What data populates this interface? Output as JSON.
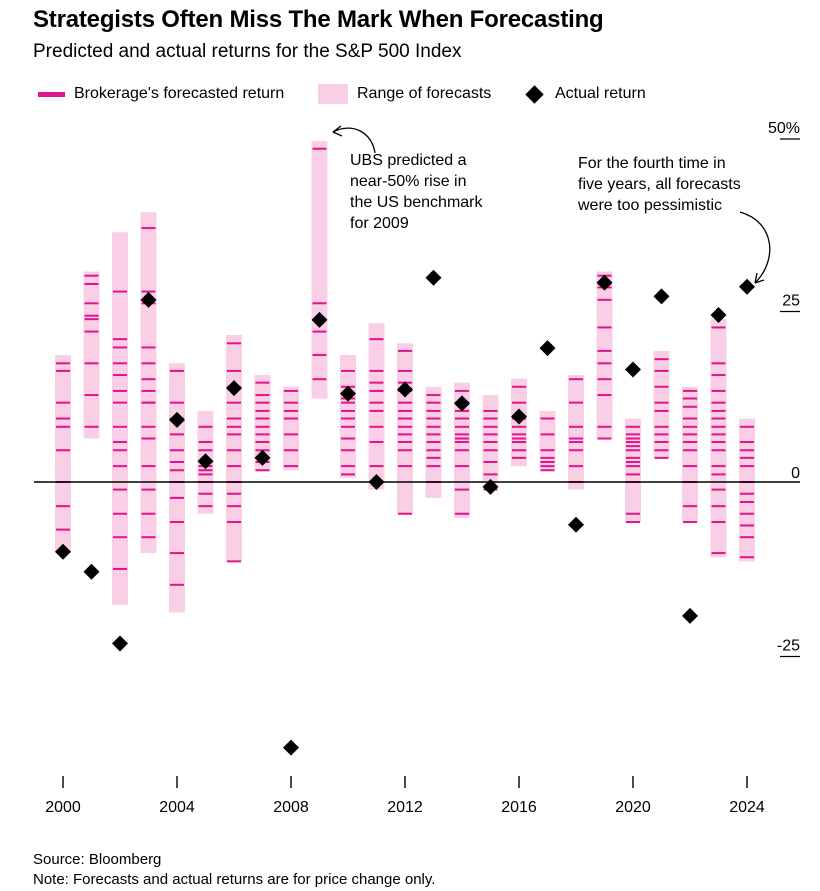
{
  "title": "Strategists Often Miss The Mark When Forecasting",
  "subtitle": "Predicted and actual returns for the S&P 500 Index",
  "legend": {
    "forecast": "Brokerage's forecasted return",
    "range": "Range of forecasts",
    "actual": "Actual return"
  },
  "colors": {
    "forecast": "#e0148c",
    "range": "#f8cfe5",
    "actual": "#000000",
    "zero_line": "#000000"
  },
  "annotations": [
    "UBS predicted a\nnear-50% rise in\nthe US benchmark\nfor 2009",
    "For the fourth time in\nfive years, all forecasts\nwere too pessimistic"
  ],
  "source": "Source: Bloomberg",
  "note": "Note: Forecasts and actual returns are for price change only.",
  "chart_data": {
    "type": "scatter",
    "title": "Strategists Often Miss The Mark When Forecasting",
    "subtitle": "Predicted and actual returns for the S&P 500 Index",
    "x_ticks": [
      "2000",
      "2004",
      "2008",
      "2012",
      "2016",
      "2020",
      "2024"
    ],
    "y_ticks": [
      "50%",
      "25",
      "0",
      "-25"
    ],
    "y_axis_side": "right",
    "ylim": [
      -43,
      52
    ],
    "xlim": [
      2000,
      2024
    ],
    "legend_placement": "top",
    "grid": false,
    "series": [
      {
        "name": "Range of forecasts",
        "type": "range",
        "x": [
          2000,
          2001,
          2002,
          2003,
          2004,
          2005,
          2006,
          2007,
          2008,
          2009,
          2010,
          2011,
          2012,
          2013,
          2014,
          2015,
          2016,
          2017,
          2018,
          2019,
          2020,
          2021,
          2022,
          2023,
          2024
        ],
        "low": [
          -10.3,
          6.3,
          -17.8,
          -10.3,
          -18.9,
          -4.6,
          -11.5,
          1.7,
          1.7,
          12.1,
          0.6,
          -1.1,
          -4.6,
          -2.3,
          -5.2,
          0,
          2.3,
          1.7,
          -1.1,
          6.3,
          -5.8,
          3.5,
          -5.8,
          -10.9,
          -11.5
        ],
        "high": [
          18.4,
          30.5,
          36.2,
          39.1,
          17.2,
          10.3,
          21.3,
          15.5,
          13.8,
          49.4,
          18.4,
          23.0,
          20.1,
          13.8,
          14.4,
          12.6,
          15.0,
          10.3,
          15.5,
          30.5,
          9.2,
          19.0,
          13.8,
          23.6,
          9.2
        ]
      },
      {
        "name": "Brokerage's forecasted return",
        "type": "ticks",
        "points": {
          "2000": [
            17.2,
            16.1,
            11.5,
            9.2,
            8.0,
            4.6,
            0,
            -3.5,
            -6.9
          ],
          "2001": [
            29.9,
            28.7,
            25.9,
            24.1,
            23.6,
            21.8,
            17.2,
            12.6,
            8.0
          ],
          "2002": [
            27.6,
            20.7,
            19.5,
            17.2,
            15.5,
            13.2,
            11.5,
            8.0,
            5.8,
            4.6,
            2.3,
            -1.1,
            -4.6,
            -8.0,
            -12.6
          ],
          "2003": [
            36.8,
            27.6,
            25.9,
            19.5,
            17.2,
            14.9,
            13.2,
            11.5,
            11.5,
            8.0,
            6.3,
            2.3,
            -1.1,
            -4.6,
            -8.0
          ],
          "2004": [
            16.1,
            11.5,
            9.2,
            6.9,
            4.6,
            2.9,
            1.7,
            0,
            -2.3,
            -5.8,
            -10.3,
            -14.9
          ],
          "2005": [
            8.0,
            5.8,
            4.6,
            2.9,
            2.3,
            1.7,
            1.1,
            0,
            -1.7,
            -3.5
          ],
          "2006": [
            20.1,
            16.1,
            13.8,
            11.5,
            9.2,
            8.0,
            6.9,
            4.6,
            2.3,
            0,
            -1.7,
            -3.5,
            -5.8,
            -11.5
          ],
          "2007": [
            14.4,
            12.6,
            11.5,
            10.3,
            9.2,
            8.0,
            6.9,
            5.8,
            4.6,
            2.9,
            1.7
          ],
          "2008": [
            13.2,
            11.5,
            10.3,
            9.2,
            6.9,
            4.6,
            2.3
          ],
          "2009": [
            48.3,
            25.9,
            21.8,
            18.4,
            14.9
          ],
          "2010": [
            16.1,
            13.8,
            12.1,
            11.5,
            10.3,
            9.2,
            8.0,
            6.3,
            4.6,
            2.3,
            1.1
          ],
          "2011": [
            20.7,
            16.1,
            14.4,
            13.2,
            11.5,
            10.3,
            8.0,
            5.8,
            2.3,
            0
          ],
          "2012": [
            19.0,
            16.1,
            14.4,
            13.2,
            11.5,
            10.3,
            9.2,
            8.0,
            6.9,
            5.8,
            4.6,
            2.3,
            -4.6
          ],
          "2013": [
            12.6,
            11.5,
            10.3,
            9.2,
            8.0,
            6.9,
            5.8,
            4.6,
            3.5,
            2.3,
            0
          ],
          "2014": [
            13.2,
            11.5,
            10.3,
            9.2,
            8.0,
            6.9,
            6.3,
            6.3,
            5.8,
            4.6,
            2.3,
            -1.1,
            -4.6
          ],
          "2015": [
            10.3,
            9.2,
            8.0,
            6.9,
            5.8,
            4.6,
            2.9,
            1.1,
            -1.1
          ],
          "2016": [
            13.8,
            11.5,
            9.2,
            8.0,
            6.9,
            6.3,
            5.8,
            4.6,
            3.5
          ],
          "2017": [
            9.2,
            6.9,
            4.6,
            3.5,
            2.9,
            2.3,
            1.7
          ],
          "2018": [
            14.9,
            11.5,
            8.0,
            6.3,
            5.8,
            4.6,
            2.3,
            0
          ],
          "2019": [
            29.9,
            28.7,
            28.2,
            26.4,
            22.4,
            19.0,
            17.2,
            14.9,
            12.6,
            8.0,
            6.3
          ],
          "2020": [
            8.0,
            6.9,
            6.3,
            5.8,
            5.2,
            4.6,
            3.5,
            2.9,
            2.3,
            1.1,
            0,
            -4.6,
            -5.8
          ],
          "2021": [
            17.8,
            16.1,
            13.8,
            11.5,
            10.3,
            8.0,
            6.9,
            5.8,
            4.6,
            3.5
          ],
          "2022": [
            13.2,
            12.1,
            10.9,
            9.2,
            8.0,
            6.9,
            5.8,
            4.6,
            2.3,
            0,
            -3.5,
            -5.8
          ],
          "2023": [
            22.4,
            17.2,
            15.5,
            13.2,
            11.5,
            10.3,
            9.2,
            8.0,
            6.9,
            5.8,
            4.6,
            2.3,
            1.1,
            -1.1,
            -3.5,
            -5.8,
            -10.3
          ],
          "2024": [
            8.0,
            5.8,
            4.6,
            3.5,
            2.3,
            0,
            -1.7,
            -2.9,
            -4.6,
            -6.3,
            -8.0,
            -10.9
          ]
        }
      },
      {
        "name": "Actual return",
        "type": "scatter",
        "x": [
          2000,
          2001,
          2002,
          2003,
          2004,
          2005,
          2006,
          2007,
          2008,
          2009,
          2010,
          2011,
          2012,
          2013,
          2014,
          2015,
          2016,
          2017,
          2018,
          2019,
          2020,
          2021,
          2022,
          2023,
          2024
        ],
        "y": [
          -10.1,
          -13.0,
          -23.4,
          26.4,
          9.0,
          3.0,
          13.6,
          3.5,
          -38.5,
          23.5,
          12.8,
          0,
          13.4,
          29.6,
          11.4,
          -0.7,
          9.5,
          19.4,
          -6.2,
          28.9,
          16.3,
          26.9,
          -19.4,
          24.2,
          28.3
        ]
      }
    ]
  }
}
